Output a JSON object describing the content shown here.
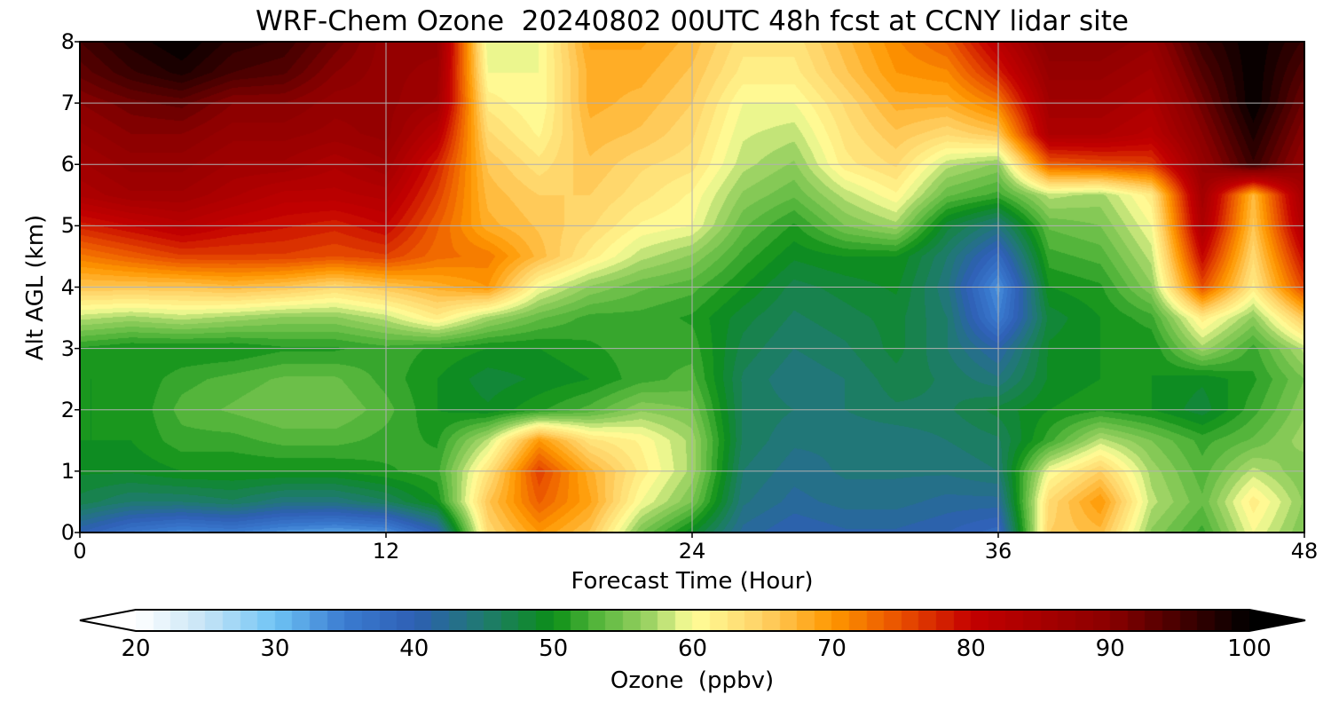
{
  "chart_data": {
    "type": "heatmap",
    "title": "WRF-Chem Ozone  20240802 00UTC 48h fcst at CCNY lidar site",
    "xlabel": "Forecast Time (Hour)",
    "ylabel": "Alt AGL (km)",
    "xlim": [
      0,
      48
    ],
    "ylim": [
      0,
      8
    ],
    "xticks": [
      0,
      12,
      24,
      36,
      48
    ],
    "yticks": [
      0,
      1,
      2,
      3,
      4,
      5,
      6,
      7,
      8
    ],
    "grid": true,
    "x": [
      0,
      2,
      4,
      6,
      8,
      10,
      12,
      14,
      16,
      18,
      20,
      22,
      24,
      26,
      28,
      30,
      32,
      34,
      36,
      38,
      40,
      42,
      44,
      46,
      48
    ],
    "y": [
      0,
      0.5,
      1,
      1.5,
      2,
      2.5,
      3,
      3.5,
      4,
      4.5,
      5,
      5.5,
      6,
      6.5,
      7,
      7.5,
      8
    ],
    "z": [
      [
        40,
        36,
        34,
        35,
        33,
        32,
        33,
        40,
        64,
        70,
        66,
        55,
        49,
        42,
        40,
        41,
        41,
        40,
        38,
        65,
        67,
        56,
        52,
        60,
        55
      ],
      [
        47,
        45,
        45,
        46,
        44,
        44,
        46,
        50,
        66,
        74,
        69,
        60,
        55,
        44,
        42,
        43,
        43,
        42,
        42,
        64,
        70,
        58,
        54,
        62,
        56
      ],
      [
        49,
        49,
        50,
        50,
        50,
        50,
        51,
        52,
        63,
        76,
        68,
        62,
        57,
        45,
        43,
        44,
        44,
        44,
        45,
        60,
        65,
        57,
        53,
        58,
        55
      ],
      [
        50,
        50,
        52,
        52,
        53,
        53,
        52,
        51,
        58,
        70,
        63,
        61,
        57,
        46,
        44,
        44,
        44,
        45,
        46,
        52,
        58,
        55,
        52,
        54,
        57
      ],
      [
        50,
        50,
        53,
        54,
        55,
        55,
        53,
        50,
        49,
        51,
        53,
        56,
        55,
        46,
        45,
        45,
        46,
        46,
        48,
        50,
        51,
        50,
        48,
        52,
        56
      ],
      [
        50,
        50,
        52,
        53,
        54,
        54,
        52,
        50,
        48,
        49,
        50,
        52,
        53,
        46,
        44,
        45,
        47,
        46,
        44,
        49,
        50,
        50,
        49,
        51,
        55
      ],
      [
        51,
        50,
        50,
        50,
        51,
        51,
        52,
        51,
        50,
        50,
        51,
        52,
        52,
        47,
        45,
        46,
        48,
        45,
        41,
        49,
        50,
        50,
        57,
        52,
        58
      ],
      [
        58,
        57,
        58,
        57,
        56,
        56,
        58,
        62,
        57,
        54,
        52,
        52,
        51,
        48,
        46,
        47,
        48,
        45,
        35,
        48,
        50,
        52,
        62,
        56,
        66
      ],
      [
        66,
        66,
        66,
        67,
        66,
        64,
        66,
        68,
        70,
        60,
        56,
        54,
        53,
        50,
        47,
        48,
        49,
        44,
        33,
        50,
        51,
        56,
        75,
        62,
        76
      ],
      [
        72,
        74,
        76,
        76,
        76,
        75,
        76,
        73,
        72,
        67,
        62,
        58,
        56,
        52,
        49,
        50,
        50,
        45,
        38,
        52,
        53,
        58,
        80,
        64,
        80
      ],
      [
        78,
        80,
        82,
        80,
        79,
        78,
        80,
        74,
        68,
        66,
        64,
        61,
        60,
        54,
        51,
        55,
        57,
        48,
        44,
        54,
        55,
        60,
        84,
        66,
        84
      ],
      [
        84,
        86,
        86,
        84,
        82,
        82,
        83,
        76,
        67,
        65,
        65,
        63,
        61,
        56,
        54,
        58,
        61,
        54,
        52,
        58,
        57,
        62,
        86,
        67,
        86
      ],
      [
        86,
        88,
        88,
        86,
        86,
        84,
        86,
        78,
        66,
        63,
        66,
        64,
        63,
        58,
        56,
        62,
        64,
        58,
        56,
        74,
        75,
        76,
        88,
        96,
        88
      ],
      [
        88,
        90,
        90,
        88,
        88,
        87,
        88,
        82,
        64,
        61,
        67,
        66,
        64,
        59,
        58,
        63,
        66,
        64,
        66,
        84,
        84,
        82,
        90,
        98,
        90
      ],
      [
        90,
        92,
        93,
        90,
        90,
        88,
        88,
        86,
        62,
        60,
        68,
        67,
        65,
        60,
        60,
        64,
        68,
        68,
        72,
        86,
        86,
        84,
        92,
        100,
        92
      ],
      [
        93,
        96,
        98,
        95,
        94,
        90,
        88,
        87,
        60,
        60,
        68,
        68,
        66,
        62,
        62,
        66,
        70,
        71,
        78,
        88,
        88,
        86,
        94,
        100,
        94
      ],
      [
        95,
        98,
        100,
        97,
        96,
        92,
        88,
        88,
        59,
        60,
        69,
        69,
        67,
        63,
        63,
        67,
        71,
        74,
        82,
        90,
        90,
        88,
        96,
        100,
        96
      ]
    ],
    "colorbar": {
      "label": "Ozone  (ppbv)",
      "min": 20,
      "max": 100,
      "ticks": [
        20,
        30,
        40,
        50,
        60,
        70,
        80,
        90,
        100
      ],
      "extend": "both",
      "colors": [
        "#ffffff",
        "#c6e4f6",
        "#6fc4f5",
        "#3a7bd0",
        "#2e5fb5",
        "#1f7a6f",
        "#0b8f17",
        "#52b43a",
        "#9fd465",
        "#ffff99",
        "#ffd166",
        "#ff9800",
        "#e84f00",
        "#c40000",
        "#8a0000",
        "#000000"
      ],
      "color_stops": [
        20,
        25,
        30,
        35,
        40,
        45,
        50,
        53,
        57,
        60,
        65,
        70,
        75,
        80,
        90,
        100
      ]
    }
  }
}
